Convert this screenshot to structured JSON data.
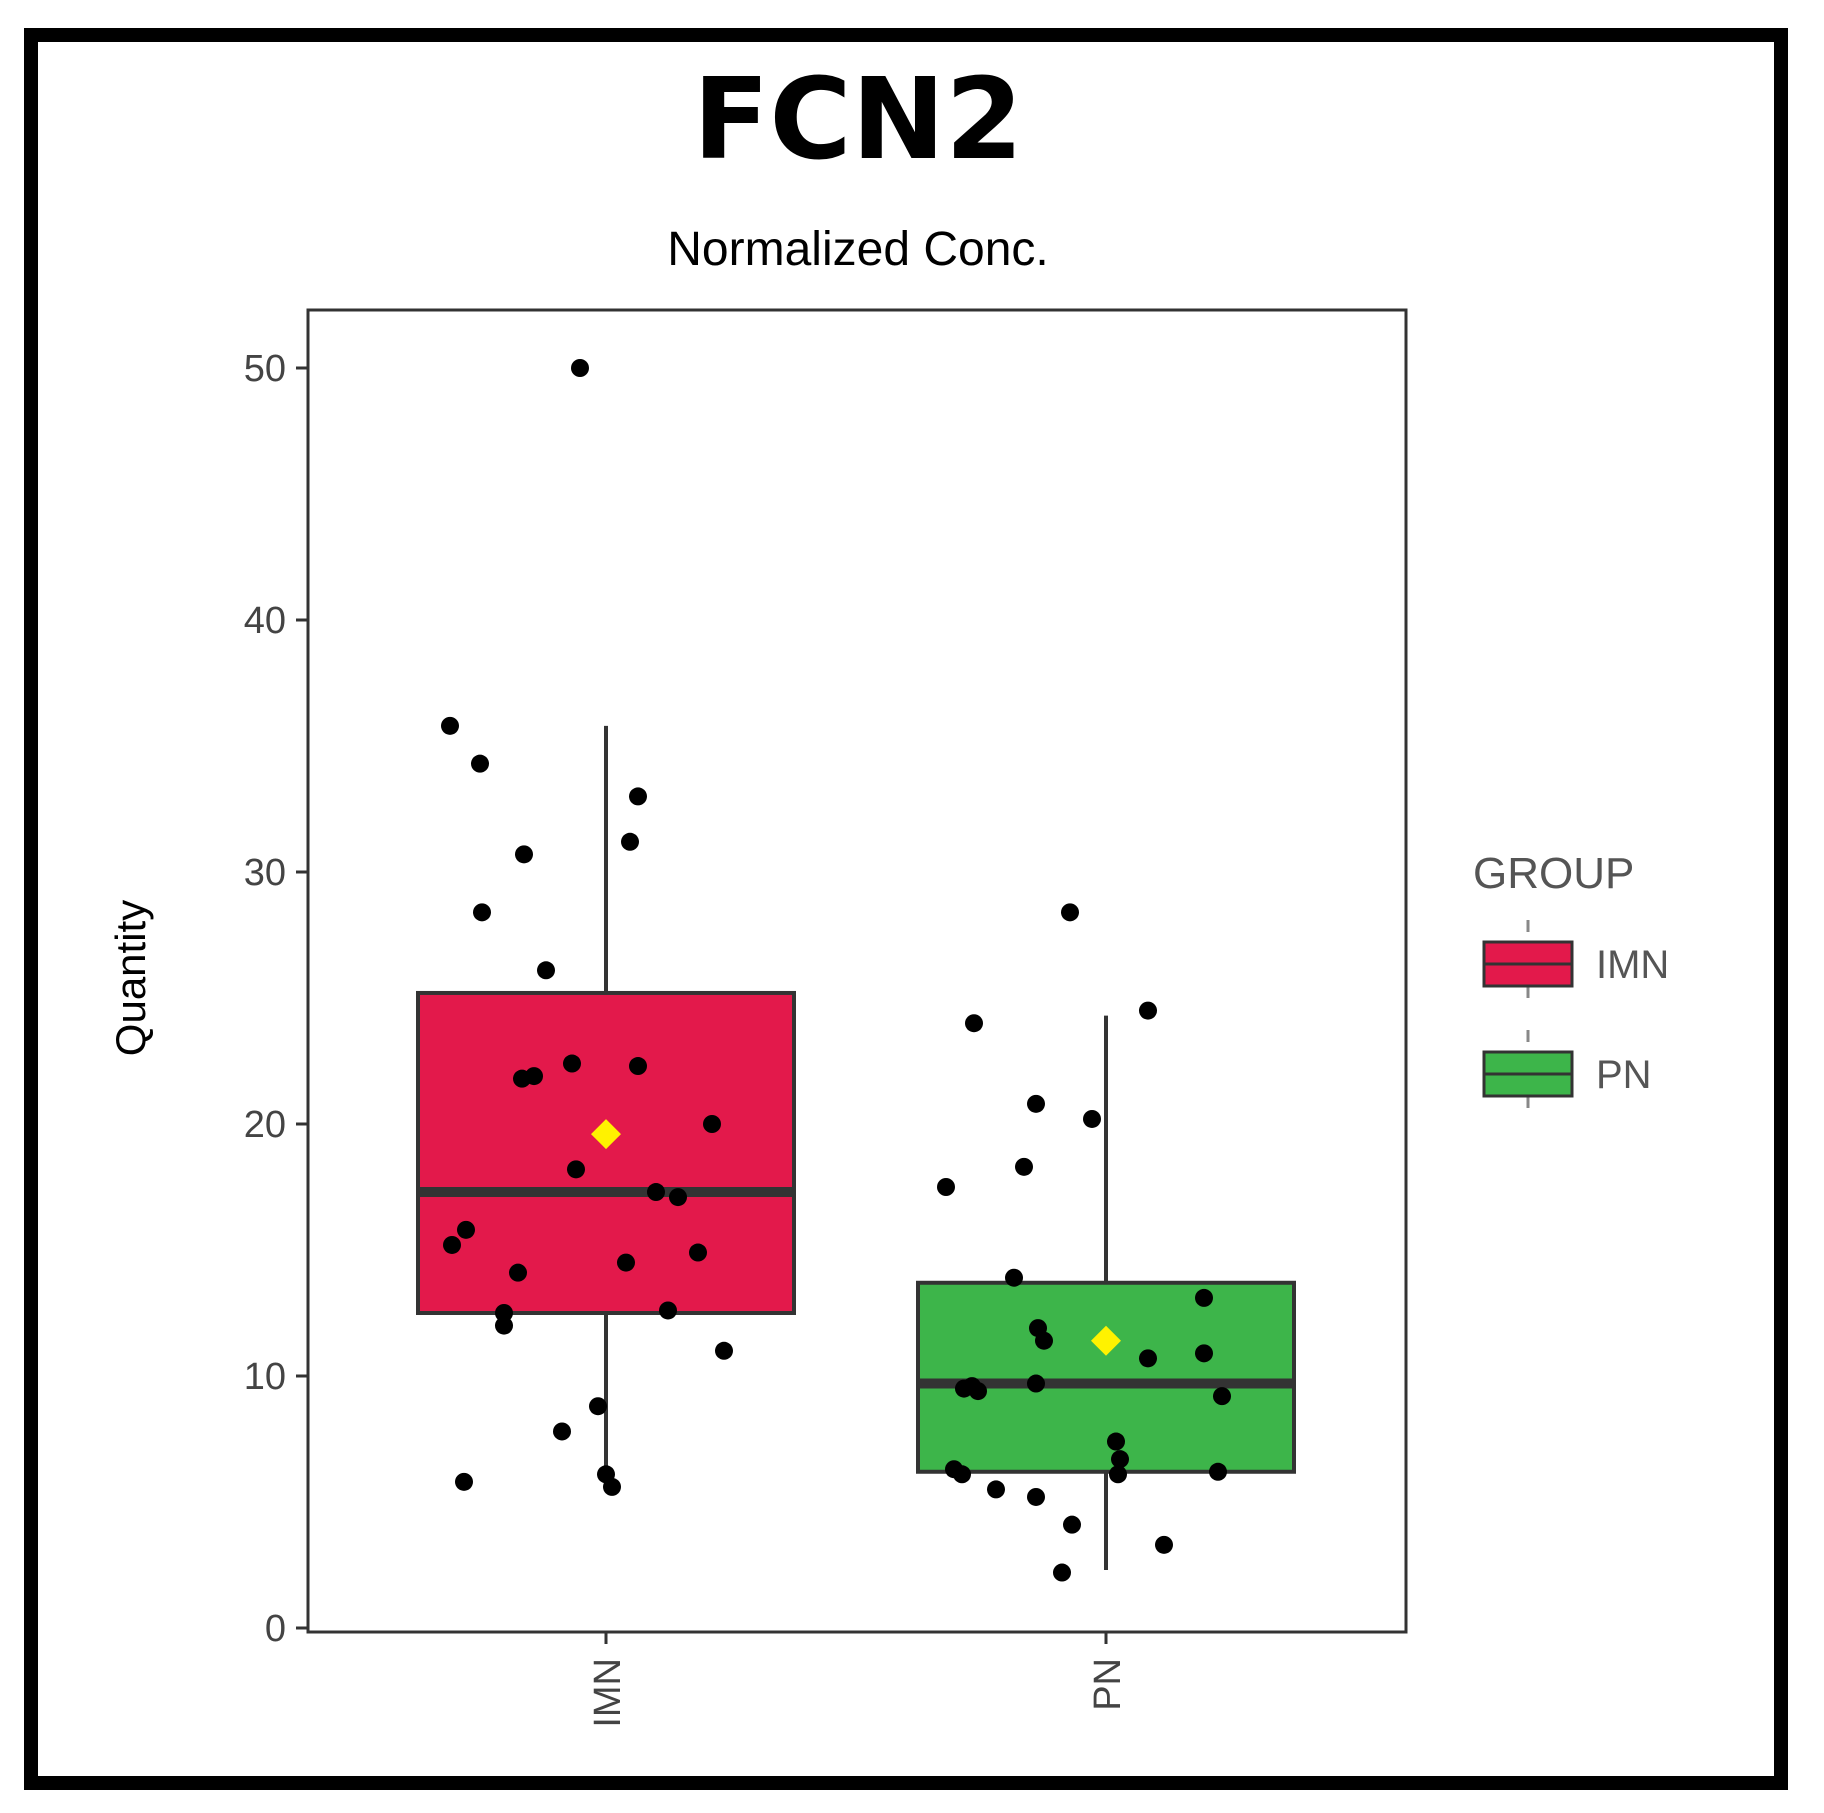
{
  "chart_data": {
    "type": "box",
    "title": "FCN2",
    "subtitle": "Normalized Conc.",
    "ylabel": "Quantity",
    "xlabel": "",
    "ylim": [
      0,
      52.3
    ],
    "yticks": [
      0,
      10,
      20,
      30,
      40,
      50
    ],
    "categories": [
      "IMN",
      "PN"
    ],
    "legend": {
      "title": "GROUP",
      "position": "right"
    },
    "groups": [
      {
        "name": "IMN",
        "color": "#E3194B",
        "q1": 12.5,
        "median": 17.3,
        "q3": 25.2,
        "whisker_low": 5.5,
        "whisker_high": 35.8,
        "mean": 19.6,
        "points": [
          [
            -0.78,
            35.8
          ],
          [
            -0.63,
            34.3
          ],
          [
            -0.62,
            28.4
          ],
          [
            -0.41,
            30.7
          ],
          [
            -0.3,
            26.1
          ],
          [
            0.16,
            33.0
          ],
          [
            0.12,
            31.2
          ],
          [
            -0.17,
            22.4
          ],
          [
            0.16,
            22.3
          ],
          [
            -0.42,
            21.8
          ],
          [
            -0.36,
            21.9
          ],
          [
            0.53,
            20.0
          ],
          [
            -0.15,
            18.2
          ],
          [
            0.25,
            17.3
          ],
          [
            0.36,
            17.1
          ],
          [
            -0.77,
            15.2
          ],
          [
            -0.7,
            15.8
          ],
          [
            0.46,
            14.9
          ],
          [
            0.1,
            14.5
          ],
          [
            -0.44,
            14.1
          ],
          [
            0.31,
            12.6
          ],
          [
            -0.51,
            12.5
          ],
          [
            -0.51,
            12.0
          ],
          [
            0.59,
            11.0
          ],
          [
            -0.04,
            8.8
          ],
          [
            -0.22,
            7.8
          ],
          [
            -0.71,
            5.8
          ],
          [
            0.0,
            6.1
          ],
          [
            0.03,
            5.6
          ],
          [
            -0.13,
            50.0
          ]
        ]
      },
      {
        "name": "PN",
        "color": "#3DB54A",
        "q1": 6.2,
        "median": 9.7,
        "q3": 13.7,
        "whisker_low": 2.3,
        "whisker_high": 24.3,
        "mean": 11.4,
        "points": [
          [
            -0.18,
            28.4
          ],
          [
            -0.66,
            24.0
          ],
          [
            0.21,
            24.5
          ],
          [
            -0.35,
            20.8
          ],
          [
            -0.07,
            20.2
          ],
          [
            -0.41,
            18.3
          ],
          [
            -0.8,
            17.5
          ],
          [
            -0.46,
            13.9
          ],
          [
            0.49,
            13.1
          ],
          [
            -0.34,
            11.9
          ],
          [
            -0.31,
            11.4
          ],
          [
            0.21,
            10.7
          ],
          [
            0.49,
            10.9
          ],
          [
            -0.71,
            9.5
          ],
          [
            -0.67,
            9.6
          ],
          [
            -0.64,
            9.4
          ],
          [
            -0.35,
            9.7
          ],
          [
            0.58,
            9.2
          ],
          [
            0.05,
            7.4
          ],
          [
            -0.76,
            6.3
          ],
          [
            -0.72,
            6.1
          ],
          [
            0.07,
            6.7
          ],
          [
            0.06,
            6.1
          ],
          [
            0.56,
            6.2
          ],
          [
            -0.55,
            5.5
          ],
          [
            -0.35,
            5.2
          ],
          [
            -0.17,
            4.1
          ],
          [
            0.29,
            3.3
          ],
          [
            -0.22,
            2.2
          ]
        ]
      }
    ],
    "mean_marker_color": "#FFF200",
    "point_color": "#000000",
    "grid": false
  }
}
